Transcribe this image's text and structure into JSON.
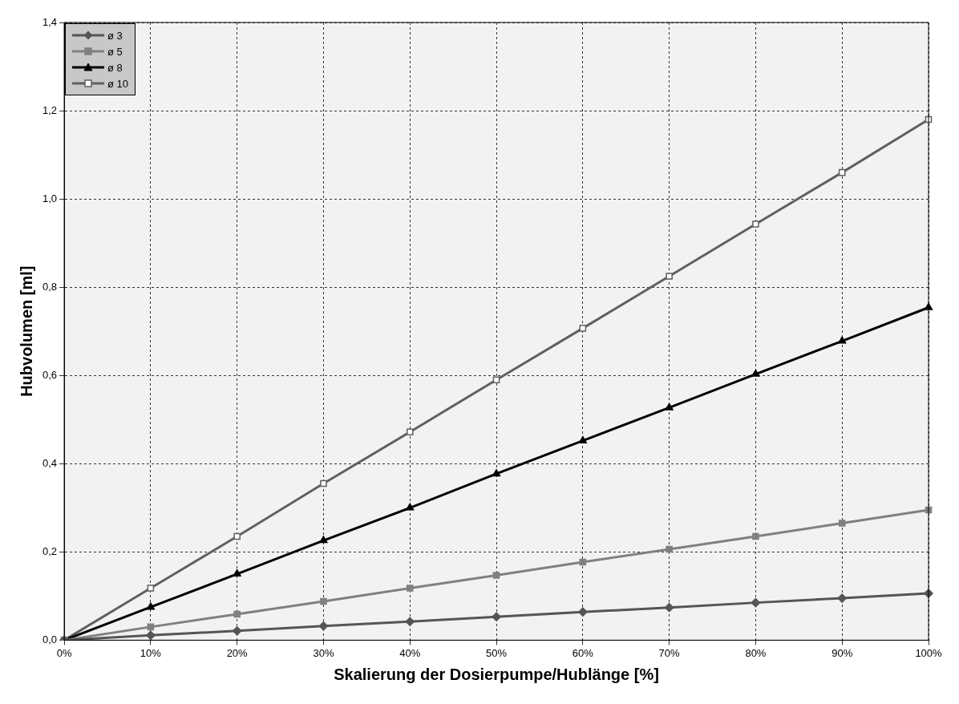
{
  "chart_data": {
    "type": "line",
    "xlabel": "Skalierung der Dosierpumpe/Hublänge [%]",
    "ylabel": "Hubvolumen [ml]",
    "categories": [
      "0%",
      "10%",
      "20%",
      "30%",
      "40%",
      "50%",
      "60%",
      "70%",
      "80%",
      "90%",
      "100%"
    ],
    "ylim": [
      0,
      1.4
    ],
    "yticks": [
      {
        "value": 0,
        "label": "0,0"
      },
      {
        "value": 0.2,
        "label": "0,2"
      },
      {
        "value": 0.4,
        "label": "0,4"
      },
      {
        "value": 0.6,
        "label": "0,6"
      },
      {
        "value": 0.8,
        "label": "0,8"
      },
      {
        "value": 1,
        "label": "1,0"
      },
      {
        "value": 1.2,
        "label": "1,2"
      },
      {
        "value": 1.4,
        "label": "1,4"
      }
    ],
    "grid": true,
    "legend": "top left",
    "line_style": "solid",
    "series": [
      {
        "name": "ø 3",
        "color": "#555555",
        "marker": "diamond",
        "values": [
          0,
          0.011,
          0.021,
          0.032,
          0.042,
          0.053,
          0.064,
          0.074,
          0.085,
          0.095,
          0.106
        ]
      },
      {
        "name": "ø 5",
        "color": "#808080",
        "marker": "square",
        "values": [
          0,
          0.03,
          0.059,
          0.088,
          0.118,
          0.147,
          0.177,
          0.206,
          0.235,
          0.265,
          0.295
        ]
      },
      {
        "name": "ø 8",
        "color": "#000000",
        "marker": "triangle",
        "values": [
          0,
          0.075,
          0.15,
          0.226,
          0.3,
          0.377,
          0.452,
          0.527,
          0.603,
          0.678,
          0.754
        ]
      },
      {
        "name": "ø 10",
        "color": "#606060",
        "marker": "square",
        "values": [
          0,
          0.118,
          0.235,
          0.355,
          0.472,
          0.59,
          0.707,
          0.825,
          0.943,
          1.06,
          1.18
        ]
      }
    ]
  }
}
